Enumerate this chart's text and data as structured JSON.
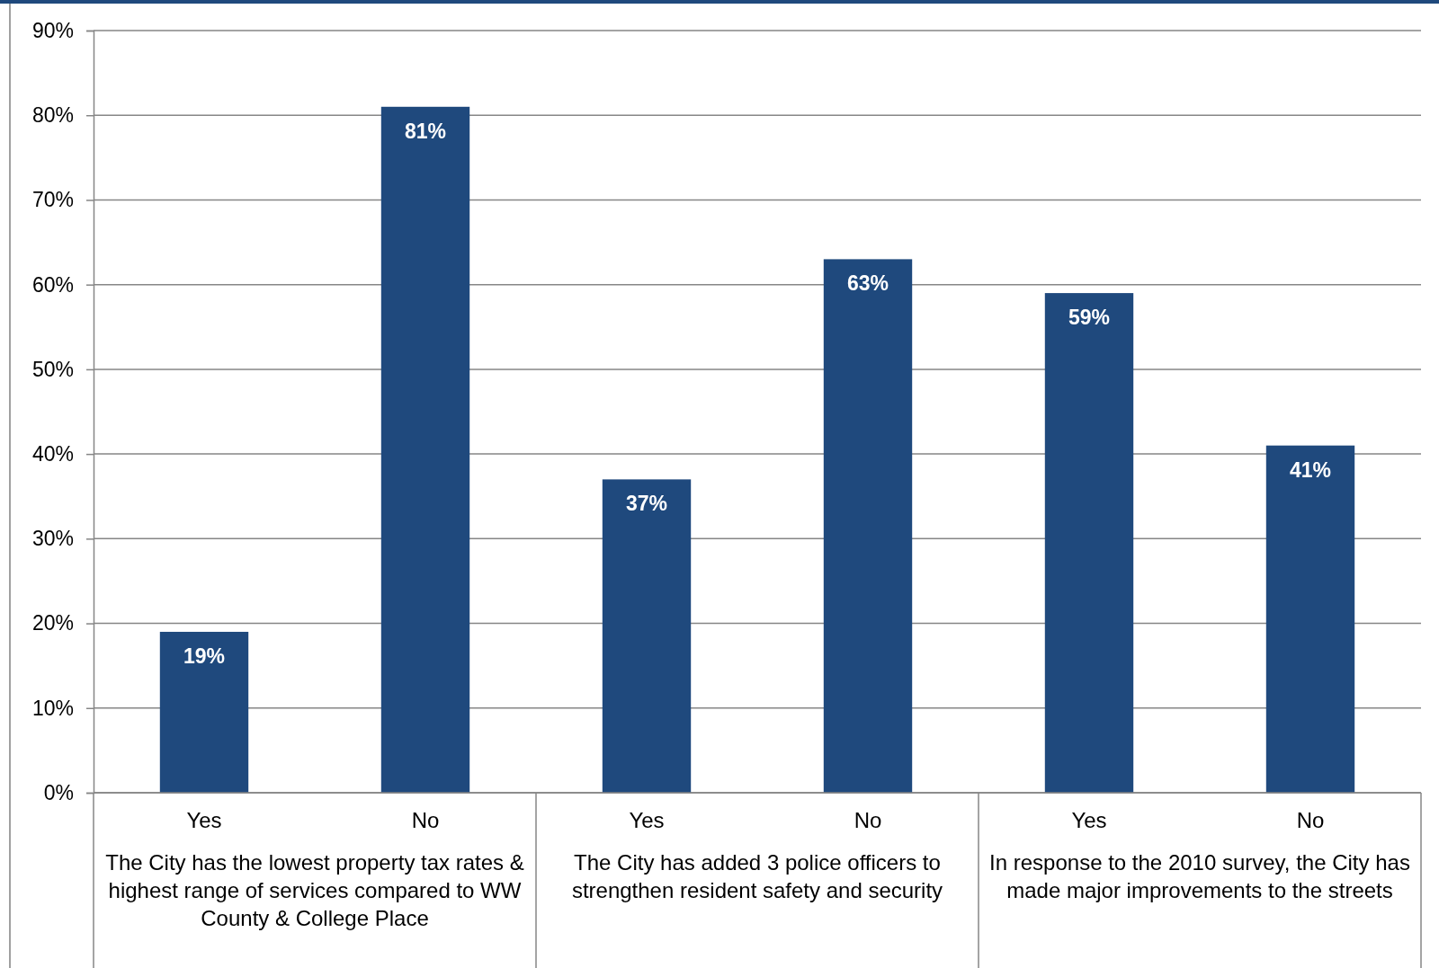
{
  "chart_data": {
    "type": "bar",
    "categories": [
      "Yes",
      "No",
      "Yes",
      "No",
      "Yes",
      "No"
    ],
    "values": [
      19,
      81,
      37,
      63,
      59,
      41
    ],
    "color": "#1f497d",
    "data_labels": true,
    "value_labels": [
      "19%",
      "81%",
      "37%",
      "63%",
      "59%",
      "41%"
    ],
    "ylim": [
      0,
      90
    ],
    "yticks": [
      {
        "value": 0,
        "label": "0%"
      },
      {
        "value": 10,
        "label": "10%"
      },
      {
        "value": 20,
        "label": "20%"
      },
      {
        "value": 30,
        "label": "30%"
      },
      {
        "value": 40,
        "label": "40%"
      },
      {
        "value": 50,
        "label": "50%"
      },
      {
        "value": 60,
        "label": "60%"
      },
      {
        "value": 70,
        "label": "70%"
      },
      {
        "value": 80,
        "label": "80%"
      },
      {
        "value": 90,
        "label": "90%"
      }
    ],
    "grid": "y",
    "annotations": [
      "The City has the lowest property tax rates & highest range of services compared to WW County & College Place",
      "The City has added 3 police officers to strengthen resident safety and security",
      "In response to the 2010 survey, the City has made major improvements to the streets"
    ]
  }
}
